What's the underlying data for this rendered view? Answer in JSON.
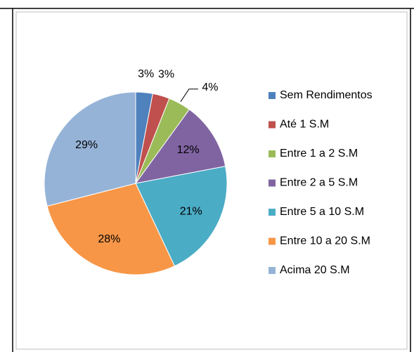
{
  "chart_data": {
    "type": "pie",
    "categories": [
      "Sem Rendimentos",
      "Até 1 S.M",
      "Entre 1 a 2 S.M",
      "Entre 2 a 5 S.M",
      "Entre 5 a 10 S.M",
      "Entre 10 a 20 S.M",
      "Acima 20 S.M"
    ],
    "values": [
      3,
      3,
      4,
      12,
      21,
      28,
      29
    ],
    "value_labels": [
      "3%",
      "3%",
      "4%",
      "12%",
      "21%",
      "28%",
      "29%"
    ],
    "colors": [
      "#4f81bd",
      "#c0504d",
      "#9bbb59",
      "#8064a2",
      "#4bacc6",
      "#f79646",
      "#95b3d7"
    ],
    "legend": "right"
  }
}
